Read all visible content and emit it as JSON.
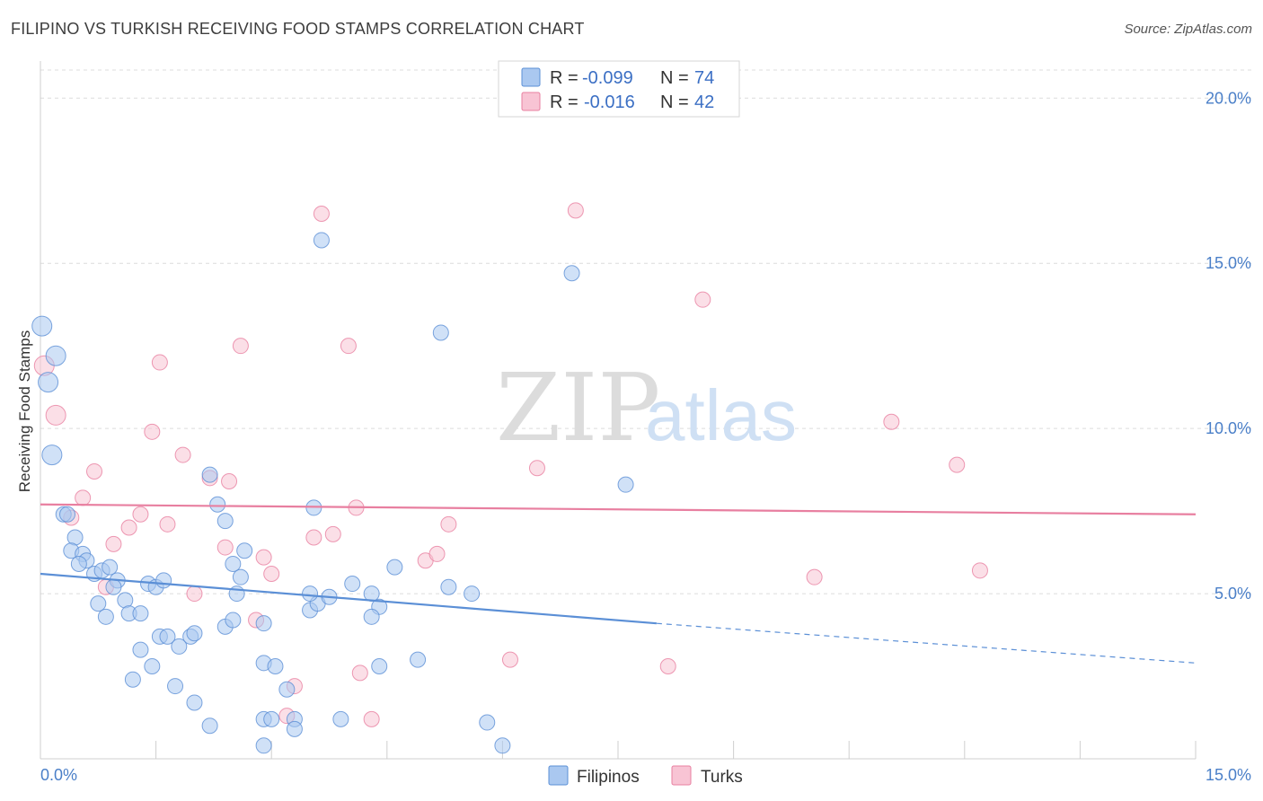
{
  "header": {
    "title": "FILIPINO VS TURKISH RECEIVING FOOD STAMPS CORRELATION CHART",
    "source": "Source: ZipAtlas.com"
  },
  "legend": {
    "rows": [
      {
        "r_label": "R =",
        "r_value": "-0.099",
        "n_label": "N =",
        "n_value": "74",
        "color": "#aac8f0",
        "stroke": "#5b8fd6"
      },
      {
        "r_label": "R =",
        "r_value": "-0.016",
        "n_label": "N =",
        "n_value": "42",
        "color": "#f8c4d4",
        "stroke": "#e87fa0"
      }
    ]
  },
  "bottom_legend": [
    {
      "label": "Filipinos",
      "color": "#aac8f0",
      "stroke": "#5b8fd6"
    },
    {
      "label": "Turks",
      "color": "#f8c4d4",
      "stroke": "#e87fa0"
    }
  ],
  "watermark": {
    "zip": "ZIP",
    "atlas": "atlas"
  },
  "chart_data": {
    "type": "scatter",
    "title": "FILIPINO VS TURKISH RECEIVING FOOD STAMPS CORRELATION CHART",
    "xlabel": "",
    "ylabel": "Receiving Food Stamps",
    "xlim": [
      0,
      15
    ],
    "ylim": [
      0,
      20
    ],
    "x_tick_labels": [
      "0.0%",
      "15.0%"
    ],
    "y_ticks": [
      5,
      10,
      15,
      20
    ],
    "y_tick_labels": [
      "5.0%",
      "10.0%",
      "15.0%",
      "20.0%"
    ],
    "grid": true,
    "legend_position": "top-center",
    "series": [
      {
        "name": "Filipinos",
        "color": "#5b8fd6",
        "fill": "#aac8f0",
        "trend": {
          "x": [
            0,
            8,
            15
          ],
          "y": [
            5.6,
            4.1,
            2.9
          ],
          "solid_until": 8
        },
        "points": [
          [
            0.02,
            13.1
          ],
          [
            0.1,
            11.4
          ],
          [
            0.2,
            12.2
          ],
          [
            0.15,
            9.2
          ],
          [
            0.3,
            7.4
          ],
          [
            0.35,
            7.4
          ],
          [
            0.45,
            6.7
          ],
          [
            0.4,
            6.3
          ],
          [
            0.55,
            6.2
          ],
          [
            0.6,
            6.0
          ],
          [
            0.5,
            5.9
          ],
          [
            0.7,
            5.6
          ],
          [
            0.8,
            5.7
          ],
          [
            0.9,
            5.8
          ],
          [
            1.0,
            5.4
          ],
          [
            0.95,
            5.2
          ],
          [
            1.1,
            4.8
          ],
          [
            0.75,
            4.7
          ],
          [
            0.85,
            4.3
          ],
          [
            1.15,
            4.4
          ],
          [
            1.3,
            4.4
          ],
          [
            1.4,
            5.3
          ],
          [
            1.5,
            5.2
          ],
          [
            1.6,
            5.4
          ],
          [
            1.55,
            3.7
          ],
          [
            1.65,
            3.7
          ],
          [
            1.8,
            3.4
          ],
          [
            1.95,
            3.7
          ],
          [
            2.0,
            3.8
          ],
          [
            1.3,
            3.3
          ],
          [
            1.45,
            2.8
          ],
          [
            1.2,
            2.4
          ],
          [
            1.75,
            2.2
          ],
          [
            2.0,
            1.7
          ],
          [
            2.2,
            1.0
          ],
          [
            2.3,
            7.7
          ],
          [
            2.4,
            7.2
          ],
          [
            2.2,
            8.6
          ],
          [
            2.4,
            4.0
          ],
          [
            2.5,
            4.2
          ],
          [
            2.55,
            5.0
          ],
          [
            2.6,
            5.5
          ],
          [
            2.65,
            6.3
          ],
          [
            2.5,
            5.9
          ],
          [
            2.9,
            4.1
          ],
          [
            2.9,
            1.2
          ],
          [
            3.0,
            1.2
          ],
          [
            2.9,
            0.4
          ],
          [
            2.9,
            2.9
          ],
          [
            3.05,
            2.8
          ],
          [
            3.2,
            2.1
          ],
          [
            3.3,
            1.2
          ],
          [
            3.3,
            0.9
          ],
          [
            3.5,
            4.5
          ],
          [
            3.6,
            4.7
          ],
          [
            3.5,
            5.0
          ],
          [
            3.55,
            7.6
          ],
          [
            3.65,
            15.7
          ],
          [
            3.75,
            4.9
          ],
          [
            3.9,
            1.2
          ],
          [
            4.05,
            5.3
          ],
          [
            4.3,
            5.0
          ],
          [
            4.4,
            4.6
          ],
          [
            4.3,
            4.3
          ],
          [
            4.4,
            2.8
          ],
          [
            4.6,
            5.8
          ],
          [
            4.9,
            3.0
          ],
          [
            5.2,
            12.9
          ],
          [
            5.3,
            5.2
          ],
          [
            5.6,
            5.0
          ],
          [
            5.8,
            1.1
          ],
          [
            6.0,
            0.4
          ],
          [
            6.9,
            14.7
          ],
          [
            7.6,
            8.3
          ]
        ]
      },
      {
        "name": "Turks",
        "color": "#e87fa0",
        "fill": "#f8c4d4",
        "trend": {
          "x": [
            0,
            15
          ],
          "y": [
            7.7,
            7.4
          ]
        },
        "points": [
          [
            0.05,
            11.9
          ],
          [
            0.2,
            10.4
          ],
          [
            0.4,
            7.3
          ],
          [
            0.55,
            7.9
          ],
          [
            0.7,
            8.7
          ],
          [
            0.85,
            5.2
          ],
          [
            0.95,
            6.5
          ],
          [
            1.15,
            7.0
          ],
          [
            1.3,
            7.4
          ],
          [
            1.45,
            9.9
          ],
          [
            1.55,
            12.0
          ],
          [
            1.65,
            7.1
          ],
          [
            1.85,
            9.2
          ],
          [
            2.0,
            5.0
          ],
          [
            2.2,
            8.5
          ],
          [
            2.4,
            6.4
          ],
          [
            2.45,
            8.4
          ],
          [
            2.6,
            12.5
          ],
          [
            2.8,
            4.2
          ],
          [
            2.9,
            6.1
          ],
          [
            3.0,
            5.6
          ],
          [
            3.2,
            1.3
          ],
          [
            3.3,
            2.2
          ],
          [
            3.55,
            6.7
          ],
          [
            3.65,
            16.5
          ],
          [
            3.8,
            6.8
          ],
          [
            4.0,
            12.5
          ],
          [
            4.1,
            7.6
          ],
          [
            4.15,
            2.6
          ],
          [
            4.3,
            1.2
          ],
          [
            5.0,
            6.0
          ],
          [
            5.15,
            6.2
          ],
          [
            5.3,
            7.1
          ],
          [
            6.1,
            3.0
          ],
          [
            6.45,
            8.8
          ],
          [
            6.95,
            16.6
          ],
          [
            8.15,
            2.8
          ],
          [
            8.6,
            13.9
          ],
          [
            10.05,
            5.5
          ],
          [
            11.05,
            10.2
          ],
          [
            11.9,
            8.9
          ],
          [
            12.2,
            5.7
          ]
        ]
      }
    ]
  }
}
